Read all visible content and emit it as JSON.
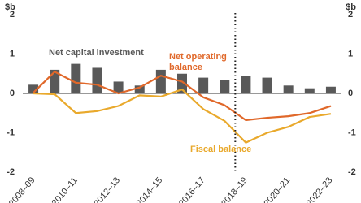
{
  "chart_data": {
    "type": "bar-line",
    "y_label": "$b",
    "y2_label": "$b",
    "categories": [
      "2008–09",
      null,
      "2010–11",
      null,
      "2012–13",
      null,
      "2014–15",
      null,
      "2016–17",
      null,
      "2018–19",
      null,
      "2020–21",
      null,
      "2022–23"
    ],
    "series": [
      {
        "name": "Net capital investment",
        "color": "#595959",
        "kind": "bar",
        "values": [
          0.22,
          0.6,
          0.75,
          0.65,
          0.3,
          0.2,
          0.6,
          0.5,
          0.4,
          0.33,
          0.45,
          0.4,
          0.2,
          0.13,
          0.17
        ]
      },
      {
        "name": "Net operating balance",
        "color": "#e0682a",
        "kind": "line",
        "values": [
          0.02,
          0.55,
          0.27,
          0.22,
          0.0,
          0.15,
          0.45,
          0.3,
          -0.1,
          -0.3,
          -0.68,
          -0.62,
          -0.58,
          -0.5,
          -0.32
        ]
      },
      {
        "name": "Fiscal balance",
        "color": "#e9a92c",
        "kind": "line",
        "values": [
          0.0,
          -0.02,
          -0.5,
          -0.45,
          -0.32,
          -0.05,
          -0.08,
          0.1,
          -0.4,
          -0.7,
          -1.25,
          -1.0,
          -0.85,
          -0.6,
          -0.52
        ]
      }
    ],
    "ylim": [
      -2,
      2
    ],
    "yticks": [
      -2,
      -1,
      0,
      1,
      2
    ],
    "y2lim": [
      -2,
      2
    ],
    "y2ticks": [
      -2,
      -1,
      0,
      1,
      2
    ]
  }
}
